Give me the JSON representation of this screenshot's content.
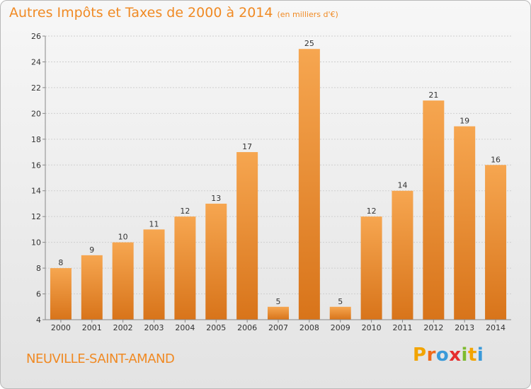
{
  "chart_data": {
    "type": "bar",
    "title": "Autres Impôts et Taxes de 2000 à 2014",
    "unit_note": "(en milliers d'€)",
    "categories": [
      "2000",
      "2001",
      "2002",
      "2003",
      "2004",
      "2005",
      "2006",
      "2007",
      "2008",
      "2009",
      "2010",
      "2011",
      "2012",
      "2013",
      "2014"
    ],
    "values": [
      8,
      9,
      10,
      11,
      12,
      13,
      17,
      5,
      25,
      5,
      12,
      14,
      21,
      19,
      16
    ],
    "ylim": [
      4,
      26
    ],
    "yticks": [
      4,
      6,
      8,
      10,
      12,
      14,
      16,
      18,
      20,
      22,
      24,
      26
    ],
    "grid": true,
    "bar_color": "#f08a24"
  },
  "commune": "NEUVILLE-SAINT-AMAND",
  "logo": {
    "letters": [
      "P",
      "r",
      "o",
      "x",
      "i",
      "t",
      "i"
    ],
    "colors": [
      "#f2a400",
      "#f06a1a",
      "#3a9ad9",
      "#e52d2d",
      "#7dbb2f",
      "#f2a400",
      "#3a9ad9"
    ]
  }
}
